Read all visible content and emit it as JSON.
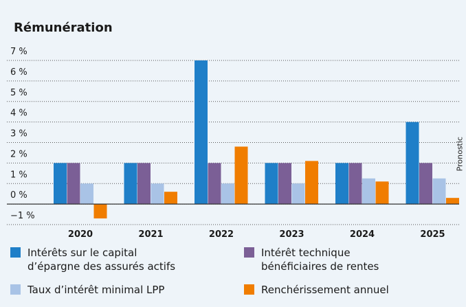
{
  "chart_data": {
    "type": "bar",
    "title": "Rémunération",
    "categories": [
      "2020",
      "2021",
      "2022",
      "2023",
      "2024",
      "2025"
    ],
    "series": [
      {
        "name": "Intérêts sur le capital d’épargne des assurés actifs",
        "color": "#1f7fc8",
        "values": [
          2,
          2,
          7,
          2,
          2,
          4
        ]
      },
      {
        "name": "Intérêt technique bénéficiaires de rentes",
        "color": "#7b5f96",
        "values": [
          2,
          2,
          2,
          2,
          2,
          2
        ]
      },
      {
        "name": "Taux d’intérêt minimal LPP",
        "color": "#a9c3e6",
        "values": [
          1,
          1,
          1,
          1,
          1.25,
          1.25
        ]
      },
      {
        "name": "Renchérissement annuel",
        "color": "#f07d00",
        "values": [
          -0.7,
          0.6,
          2.8,
          2.1,
          1.1,
          0.3
        ]
      }
    ],
    "annotation": "Pronostic",
    "ylim": [
      -1,
      7
    ],
    "yticks": [
      {
        "value": -1,
        "label": "−1 %"
      },
      {
        "value": 0,
        "label": "0 %"
      },
      {
        "value": 1,
        "label": "1 %"
      },
      {
        "value": 2,
        "label": "2 %"
      },
      {
        "value": 3,
        "label": "3 %"
      },
      {
        "value": 4,
        "label": "4 %"
      },
      {
        "value": 5,
        "label": "5 %"
      },
      {
        "value": 6,
        "label": "6 %"
      },
      {
        "value": 7,
        "label": "7 %"
      }
    ],
    "grid": true
  }
}
